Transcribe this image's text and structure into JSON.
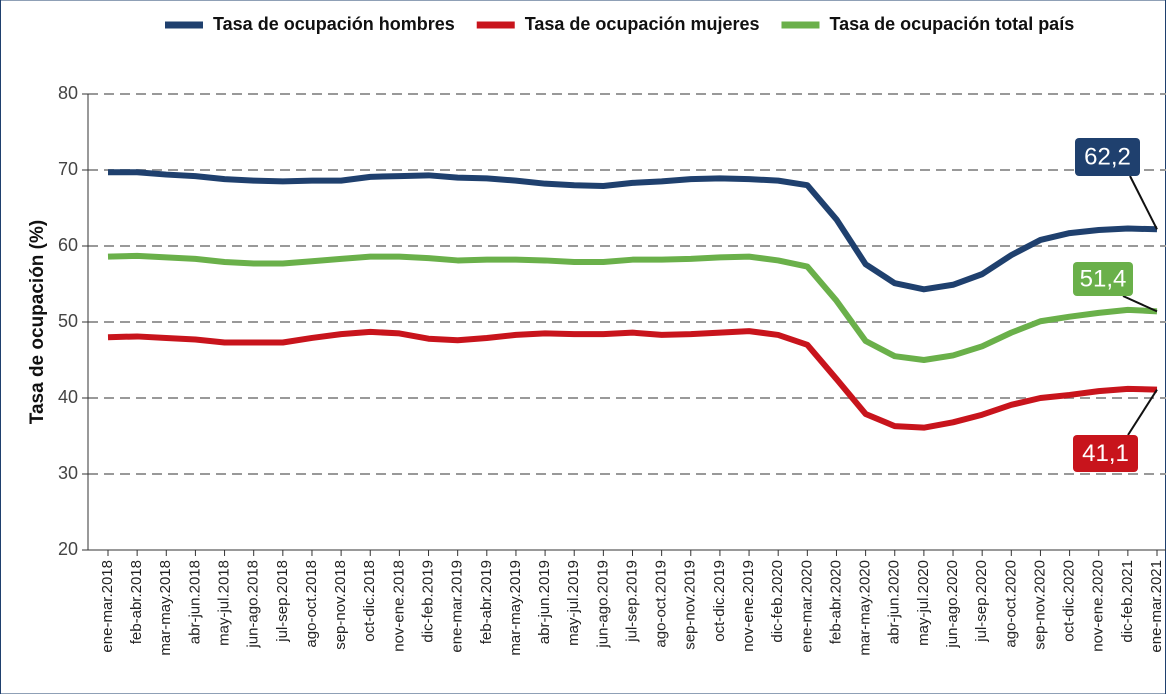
{
  "chart_data": {
    "type": "line",
    "y_label": "Tasa de ocupación (%)",
    "categories": [
      "ene-mar.2018",
      "feb-abr.2018",
      "mar-may.2018",
      "abr-jun.2018",
      "may-jul.2018",
      "jun-ago.2018",
      "jul-sep.2018",
      "ago-oct.2018",
      "sep-nov.2018",
      "oct-dic.2018",
      "nov-ene.2018",
      "dic-feb.2019",
      "ene-mar.2019",
      "feb-abr.2019",
      "mar-may.2019",
      "abr-jun.2019",
      "may-jul.2019",
      "jun-ago.2019",
      "jul-sep.2019",
      "ago-oct.2019",
      "sep-nov.2019",
      "oct-dic.2019",
      "nov-ene.2019",
      "dic-feb.2020",
      "ene-mar.2020",
      "feb-abr.2020",
      "mar-may.2020",
      "abr-jun.2020",
      "may-jul.2020",
      "jun-ago.2020",
      "jul-sep.2020",
      "ago-oct.2020",
      "sep-nov.2020",
      "oct-dic.2020",
      "nov-ene.2020",
      "dic-feb.2021",
      "ene-mar.2021"
    ],
    "series": [
      {
        "name": "Tasa de ocupación hombres",
        "color": "#1f406e",
        "values": [
          69.7,
          69.7,
          69.4,
          69.2,
          68.8,
          68.6,
          68.5,
          68.6,
          68.6,
          69.1,
          69.2,
          69.3,
          69.0,
          68.9,
          68.6,
          68.2,
          68.0,
          67.9,
          68.3,
          68.5,
          68.8,
          68.9,
          68.8,
          68.6,
          68.0,
          63.5,
          57.6,
          55.1,
          54.3,
          54.9,
          56.3,
          58.8,
          60.8,
          61.7,
          62.1,
          62.3,
          62.2
        ],
        "value_labels": [
          null,
          null,
          null,
          null,
          null,
          null,
          null,
          null,
          null,
          null,
          null,
          null,
          null,
          null,
          null,
          null,
          null,
          null,
          null,
          null,
          null,
          null,
          null,
          null,
          null,
          null,
          null,
          null,
          null,
          null,
          null,
          null,
          null,
          null,
          null,
          null,
          "62,2"
        ]
      },
      {
        "name": "Tasa de ocupación mujeres",
        "color": "#c8141c",
        "values": [
          48.0,
          48.1,
          47.9,
          47.7,
          47.3,
          47.3,
          47.3,
          47.9,
          48.4,
          48.7,
          48.5,
          47.8,
          47.6,
          47.9,
          48.3,
          48.5,
          48.4,
          48.4,
          48.6,
          48.3,
          48.4,
          48.6,
          48.8,
          48.3,
          47.0,
          42.5,
          37.9,
          36.3,
          36.1,
          36.8,
          37.8,
          39.1,
          40.0,
          40.4,
          40.9,
          41.2,
          41.1
        ],
        "value_labels": [
          null,
          null,
          null,
          null,
          null,
          null,
          null,
          null,
          null,
          null,
          null,
          null,
          null,
          null,
          null,
          null,
          null,
          null,
          null,
          null,
          null,
          null,
          null,
          null,
          null,
          null,
          null,
          null,
          null,
          null,
          null,
          null,
          null,
          null,
          null,
          null,
          "41,1"
        ]
      },
      {
        "name": "Tasa de ocupación total país",
        "color": "#6ab04a",
        "values": [
          58.6,
          58.7,
          58.5,
          58.3,
          57.9,
          57.7,
          57.7,
          58.0,
          58.3,
          58.6,
          58.6,
          58.4,
          58.1,
          58.2,
          58.2,
          58.1,
          57.9,
          57.9,
          58.2,
          58.2,
          58.3,
          58.5,
          58.6,
          58.1,
          57.3,
          52.8,
          47.5,
          45.5,
          45.0,
          45.6,
          46.8,
          48.6,
          50.1,
          50.7,
          51.2,
          51.6,
          51.4
        ],
        "value_labels": [
          null,
          null,
          null,
          null,
          null,
          null,
          null,
          null,
          null,
          null,
          null,
          null,
          null,
          null,
          null,
          null,
          null,
          null,
          null,
          null,
          null,
          null,
          null,
          null,
          null,
          null,
          null,
          null,
          null,
          null,
          null,
          null,
          null,
          null,
          null,
          null,
          "51,4"
        ]
      }
    ],
    "ylim": [
      20,
      80
    ],
    "yticks": [
      20,
      30,
      40,
      50,
      60,
      70,
      80
    ],
    "grid": true,
    "legend": "top"
  }
}
